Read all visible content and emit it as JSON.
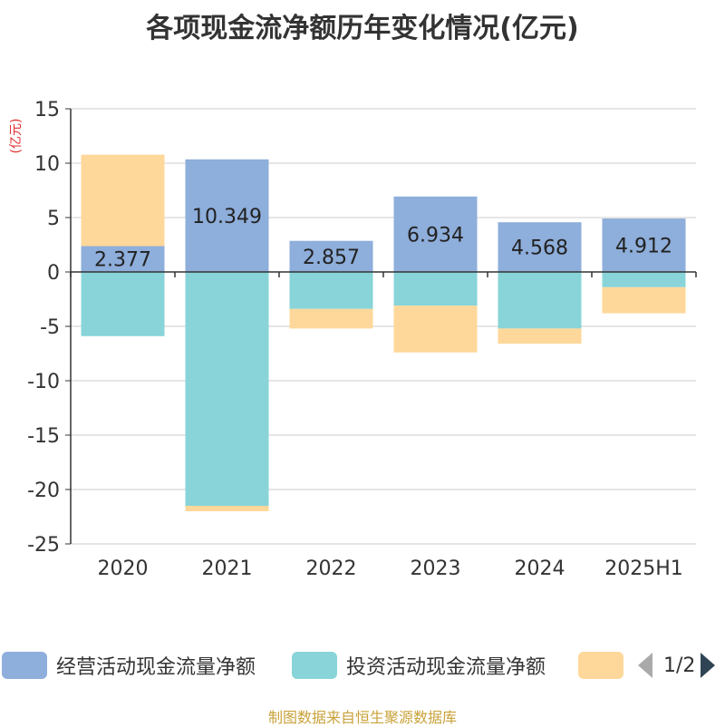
{
  "title": "各项现金流净额历年变化情况(亿元)",
  "unit_label": "(亿元)",
  "footer": "制图数据来自恒生聚源数据库",
  "pager": {
    "text": "1/2"
  },
  "colors": {
    "operating": "#8eaedb",
    "investing": "#88d4d8",
    "financing": "#fed89a",
    "unit": "#e03030",
    "axis": "#333333",
    "grid": "#cccccc"
  },
  "chart_data": {
    "type": "bar",
    "stacked": true,
    "categories": [
      "2020",
      "2021",
      "2022",
      "2023",
      "2024",
      "2025H1"
    ],
    "series": [
      {
        "name": "经营活动现金流量净额",
        "values": [
          2.377,
          10.349,
          2.857,
          6.934,
          4.568,
          4.912
        ],
        "data_labels": [
          "2.377",
          "10.349",
          "2.857",
          "6.934",
          "4.568",
          "4.912"
        ]
      },
      {
        "name": "投资活动现金流量净额",
        "values": [
          -5.9,
          -21.5,
          -3.4,
          -3.1,
          -5.2,
          -1.4
        ]
      },
      {
        "name": "",
        "values": [
          8.4,
          -0.5,
          -1.8,
          -4.3,
          -1.4,
          -2.4
        ]
      }
    ],
    "ylim": [
      -25,
      15
    ],
    "yticks": [
      15,
      10,
      5,
      0,
      -5,
      -10,
      -15,
      -20,
      -25
    ],
    "grid": true,
    "legend_position": "bottom"
  }
}
